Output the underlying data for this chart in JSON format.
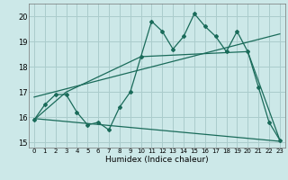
{
  "xlabel": "Humidex (Indice chaleur)",
  "background_color": "#cce8e8",
  "grid_color": "#aacccc",
  "line_color": "#1a6b5a",
  "xlim": [
    -0.5,
    23.5
  ],
  "ylim": [
    14.8,
    20.5
  ],
  "yticks": [
    15,
    16,
    17,
    18,
    19,
    20
  ],
  "xticks": [
    0,
    1,
    2,
    3,
    4,
    5,
    6,
    7,
    8,
    9,
    10,
    11,
    12,
    13,
    14,
    15,
    16,
    17,
    18,
    19,
    20,
    21,
    22,
    23
  ],
  "line1_x": [
    0,
    1,
    2,
    3,
    4,
    5,
    6,
    7,
    8,
    9,
    10,
    11,
    12,
    13,
    14,
    15,
    16,
    17,
    18,
    19,
    20,
    21,
    22,
    23
  ],
  "line1_y": [
    15.9,
    16.5,
    16.9,
    16.9,
    16.2,
    15.7,
    15.8,
    15.5,
    16.4,
    17.0,
    18.4,
    19.8,
    19.4,
    18.7,
    19.2,
    20.1,
    19.6,
    19.2,
    18.6,
    19.4,
    18.6,
    17.2,
    15.8,
    15.1
  ],
  "line2_x": [
    0,
    3,
    10,
    20,
    23
  ],
  "line2_y": [
    15.9,
    17.0,
    18.4,
    18.6,
    15.1
  ],
  "line3_x": [
    0,
    23
  ],
  "line3_y": [
    16.8,
    19.3
  ],
  "line4_x": [
    0,
    23
  ],
  "line4_y": [
    15.95,
    15.05
  ]
}
